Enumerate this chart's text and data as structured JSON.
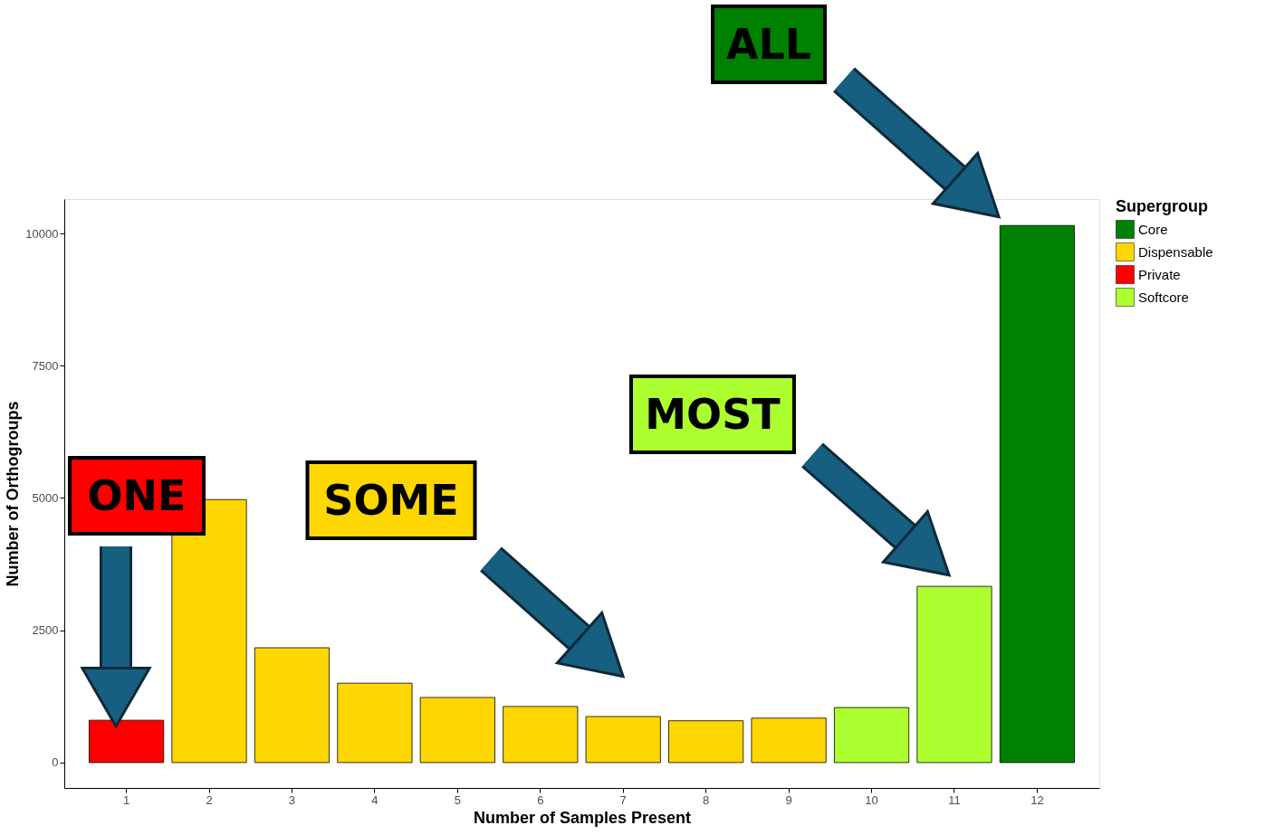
{
  "chart_data": {
    "type": "bar",
    "xlabel": "Number of Samples Present",
    "ylabel": "Number of Orthogroups",
    "legend_title": "Supergroup",
    "categories": [
      "1",
      "2",
      "3",
      "4",
      "5",
      "6",
      "7",
      "8",
      "9",
      "10",
      "11",
      "12"
    ],
    "series": [
      {
        "name": "Core",
        "color": "#008000",
        "values": [
          null,
          null,
          null,
          null,
          null,
          null,
          null,
          null,
          null,
          null,
          null,
          10150
        ]
      },
      {
        "name": "Dispensable",
        "color": "#ffd700",
        "values": [
          null,
          4970,
          2170,
          1500,
          1230,
          1060,
          870,
          790,
          840,
          null,
          null,
          null
        ]
      },
      {
        "name": "Private",
        "color": "#ff0000",
        "values": [
          800,
          null,
          null,
          null,
          null,
          null,
          null,
          null,
          null,
          null,
          null,
          null
        ]
      },
      {
        "name": "Softcore",
        "color": "#adff2f",
        "values": [
          null,
          null,
          null,
          null,
          null,
          null,
          null,
          null,
          null,
          1040,
          3330,
          null
        ]
      }
    ],
    "ylim": [
      -480,
      10650
    ],
    "yticks": [
      0,
      2500,
      5000,
      7500,
      10000
    ],
    "grid": false,
    "legend": "right",
    "annotations": [
      "ONE",
      "SOME",
      "MOST",
      "ALL"
    ]
  }
}
